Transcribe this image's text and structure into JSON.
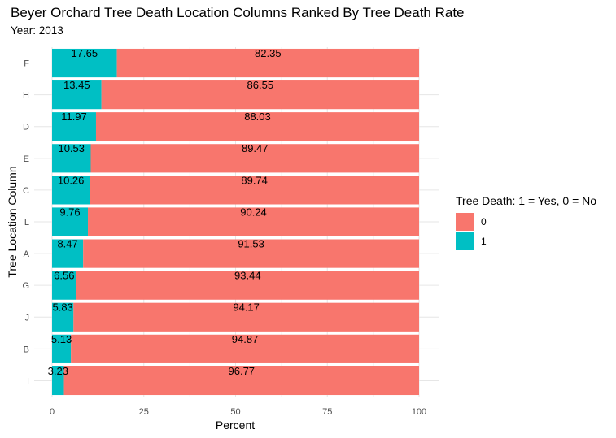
{
  "chart_data": {
    "type": "bar",
    "orientation": "horizontal",
    "stacked": true,
    "title": "Beyer Orchard Tree Death Location Columns Ranked By Tree Death Rate",
    "subtitle": "Year: 2013",
    "xlabel": "Percent",
    "ylabel": "Tree Location Column",
    "xlim": [
      0,
      100
    ],
    "xticks": [
      "0",
      "25",
      "50",
      "75",
      "100"
    ],
    "grid": true,
    "legend_placement": "right",
    "legend_title": "Tree Death: 1 = Yes, 0 = No",
    "categories": [
      "F",
      "H",
      "D",
      "E",
      "C",
      "L",
      "A",
      "G",
      "J",
      "B",
      "I"
    ],
    "series": [
      {
        "name": "1",
        "color": "#00BFC4",
        "values": [
          17.65,
          13.45,
          11.97,
          10.53,
          10.26,
          9.76,
          8.47,
          6.56,
          5.83,
          5.13,
          3.23
        ],
        "labels": [
          "17.65",
          "13.45",
          "11.97",
          "10.53",
          "10.26",
          "9.76",
          "8.47",
          "6.56",
          "5.83",
          "5.13",
          "3.23"
        ]
      },
      {
        "name": "0",
        "color": "#F8766D",
        "values": [
          82.35,
          86.55,
          88.03,
          89.47,
          89.74,
          90.24,
          91.53,
          93.44,
          94.17,
          94.87,
          96.77
        ],
        "labels": [
          "82.35",
          "86.55",
          "88.03",
          "89.47",
          "89.74",
          "90.24",
          "91.53",
          "93.44",
          "94.17",
          "94.87",
          "96.77"
        ]
      }
    ],
    "legend": [
      {
        "label": "0",
        "color": "#F8766D"
      },
      {
        "label": "1",
        "color": "#00BFC4"
      }
    ]
  }
}
